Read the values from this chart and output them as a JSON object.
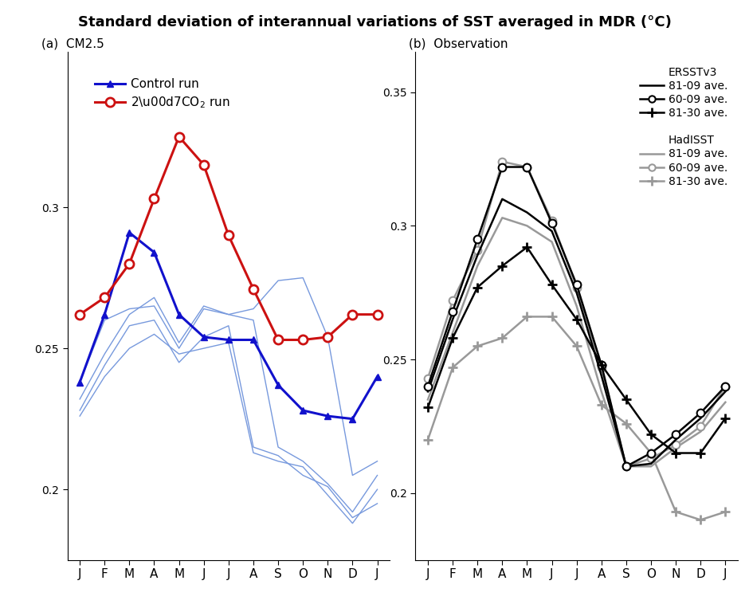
{
  "title": "Standard deviation of interannual variations of SST averaged in MDR (°C)",
  "months": [
    "J",
    "F",
    "M",
    "A",
    "M",
    "J",
    "J",
    "A",
    "S",
    "O",
    "N",
    "D",
    "J"
  ],
  "month_indices": [
    0,
    1,
    2,
    3,
    4,
    5,
    6,
    7,
    8,
    9,
    10,
    11,
    12
  ],
  "panel_a_label": "(a)  CM2.5",
  "panel_b_label": "(b)  Observation",
  "control_thick": [
    0.238,
    0.262,
    0.291,
    0.284,
    0.262,
    0.254,
    0.253,
    0.253,
    0.237,
    0.228,
    0.226,
    0.225,
    0.24
  ],
  "co2_thick": [
    0.262,
    0.268,
    0.28,
    0.303,
    0.325,
    0.315,
    0.29,
    0.271,
    0.253,
    0.253,
    0.254,
    0.262,
    0.262
  ],
  "control_thin_1": [
    0.238,
    0.26,
    0.264,
    0.265,
    0.25,
    0.264,
    0.262,
    0.264,
    0.274,
    0.275,
    0.254,
    0.205,
    0.21
  ],
  "control_thin_2": [
    0.232,
    0.248,
    0.262,
    0.268,
    0.252,
    0.265,
    0.262,
    0.26,
    0.215,
    0.21,
    0.202,
    0.192,
    0.205
  ],
  "control_thin_3": [
    0.228,
    0.244,
    0.258,
    0.26,
    0.245,
    0.254,
    0.258,
    0.215,
    0.212,
    0.205,
    0.201,
    0.19,
    0.195
  ],
  "control_thin_4": [
    0.226,
    0.24,
    0.25,
    0.255,
    0.248,
    0.25,
    0.252,
    0.213,
    0.21,
    0.208,
    0.198,
    0.188,
    0.2
  ],
  "ersst_81_09": [
    0.238,
    0.265,
    0.289,
    0.31,
    0.305,
    0.298,
    0.275,
    0.244,
    0.21,
    0.211,
    0.22,
    0.228,
    0.238
  ],
  "ersst_60_09": [
    0.24,
    0.268,
    0.295,
    0.322,
    0.322,
    0.301,
    0.278,
    0.248,
    0.21,
    0.215,
    0.222,
    0.23,
    0.24
  ],
  "ersst_81_30": [
    0.232,
    0.258,
    0.277,
    0.285,
    0.292,
    0.278,
    0.265,
    0.248,
    0.235,
    0.222,
    0.215,
    0.215,
    0.228
  ],
  "had_81_09": [
    0.235,
    0.26,
    0.285,
    0.303,
    0.3,
    0.294,
    0.27,
    0.238,
    0.21,
    0.21,
    0.217,
    0.223,
    0.234
  ],
  "had_60_09": [
    0.243,
    0.272,
    0.291,
    0.324,
    0.322,
    0.302,
    0.277,
    0.247,
    0.21,
    0.213,
    0.218,
    0.225,
    0.24
  ],
  "had_81_30": [
    0.22,
    0.247,
    0.255,
    0.258,
    0.266,
    0.266,
    0.255,
    0.233,
    0.226,
    0.215,
    0.193,
    0.19,
    0.193
  ],
  "ylim_a": [
    0.175,
    0.355
  ],
  "ylim_b": [
    0.175,
    0.365
  ],
  "yticks_a": [
    0.2,
    0.25,
    0.3
  ],
  "yticks_b": [
    0.2,
    0.25,
    0.3,
    0.35
  ],
  "color_blue": "#1111CC",
  "color_blue_thin": "#7799DD",
  "color_red": "#CC1111",
  "color_black": "#000000",
  "color_grey": "#999999"
}
